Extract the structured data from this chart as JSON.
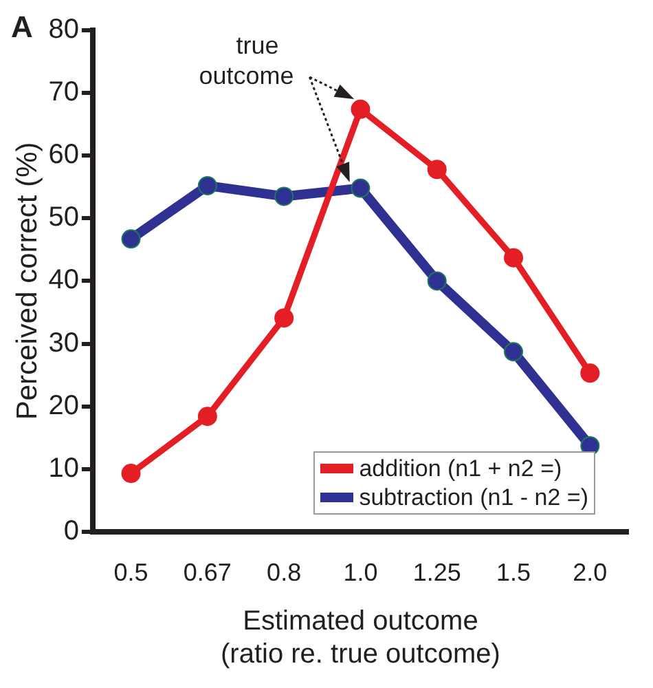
{
  "chart_data": {
    "type": "line",
    "xlabel": "Estimated outcome\n(ratio re. true outcome)",
    "ylabel": "Perceived correct (%)",
    "categories": [
      "0.5",
      "0.67",
      "0.8",
      "1.0",
      "1.25",
      "1.5",
      "2.0"
    ],
    "series": [
      {
        "name": "addition (n1 + n2 =)",
        "color": "#e31e24",
        "values": [
          9.3,
          18.4,
          34.1,
          67.4,
          57.8,
          43.7,
          25.3
        ]
      },
      {
        "name": "subtraction (n1 - n2 =)",
        "color": "#2e3192",
        "values": [
          46.7,
          55.2,
          53.5,
          54.8,
          40.0,
          28.7,
          13.7
        ]
      }
    ],
    "ylim": [
      0,
      80
    ],
    "yticks": [
      0,
      10,
      20,
      30,
      40,
      50,
      60,
      70,
      80
    ],
    "grid": false,
    "legend": "bottom right",
    "marker": "circle",
    "line_style": "solid",
    "annotations": [
      "A",
      {
        "text": "true outcome",
        "x": "1.0",
        "y": 67.4
      }
    ]
  }
}
